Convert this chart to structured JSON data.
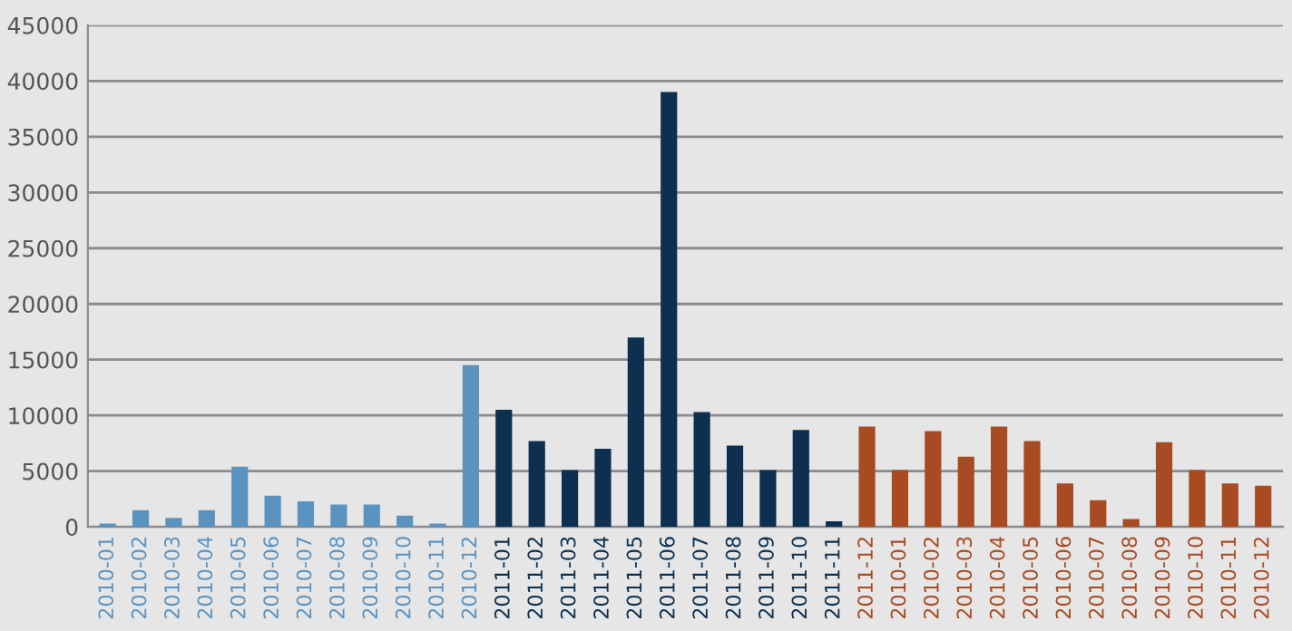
{
  "chart_data": {
    "type": "bar",
    "categories": [
      "2010-01",
      "2010-02",
      "2010-03",
      "2010-04",
      "2010-05",
      "2010-06",
      "2010-07",
      "2010-08",
      "2010-09",
      "2010-10",
      "2010-11",
      "2010-12",
      "2011-01",
      "2011-02",
      "2011-03",
      "2011-04",
      "2011-05",
      "2011-06",
      "2011-07",
      "2011-08",
      "2011-09",
      "2011-10",
      "2011-11",
      "2011-12",
      "2010-01",
      "2010-02",
      "2010-03",
      "2010-04",
      "2010-05",
      "2010-06",
      "2010-07",
      "2010-08",
      "2010-09",
      "2010-10",
      "2010-11",
      "2010-12"
    ],
    "values": [
      300,
      1500,
      800,
      1500,
      5400,
      2800,
      2300,
      2000,
      2000,
      1000,
      300,
      14500,
      10500,
      7700,
      5100,
      7000,
      17000,
      39000,
      10300,
      7300,
      5100,
      8700,
      500,
      9000,
      5100,
      8600,
      6300,
      9000,
      7700,
      3900,
      2400,
      700,
      7600,
      5100,
      3900,
      3700
    ],
    "colors": [
      "#5b93c0",
      "#5b93c0",
      "#5b93c0",
      "#5b93c0",
      "#5b93c0",
      "#5b93c0",
      "#5b93c0",
      "#5b93c0",
      "#5b93c0",
      "#5b93c0",
      "#5b93c0",
      "#5b93c0",
      "#0d3050",
      "#0d3050",
      "#0d3050",
      "#0d3050",
      "#0d3050",
      "#0d3050",
      "#0d3050",
      "#0d3050",
      "#0d3050",
      "#0d3050",
      "#0d3050",
      "#a84a22",
      "#a84a22",
      "#a84a22",
      "#a84a22",
      "#a84a22",
      "#a84a22",
      "#a84a22",
      "#a84a22",
      "#a84a22",
      "#a84a22",
      "#a84a22",
      "#a84a22",
      "#a84a22"
    ],
    "ylim": [
      0,
      45000
    ],
    "yticks": [
      0,
      5000,
      10000,
      15000,
      20000,
      25000,
      30000,
      35000,
      40000,
      45000
    ],
    "grid": "y"
  }
}
